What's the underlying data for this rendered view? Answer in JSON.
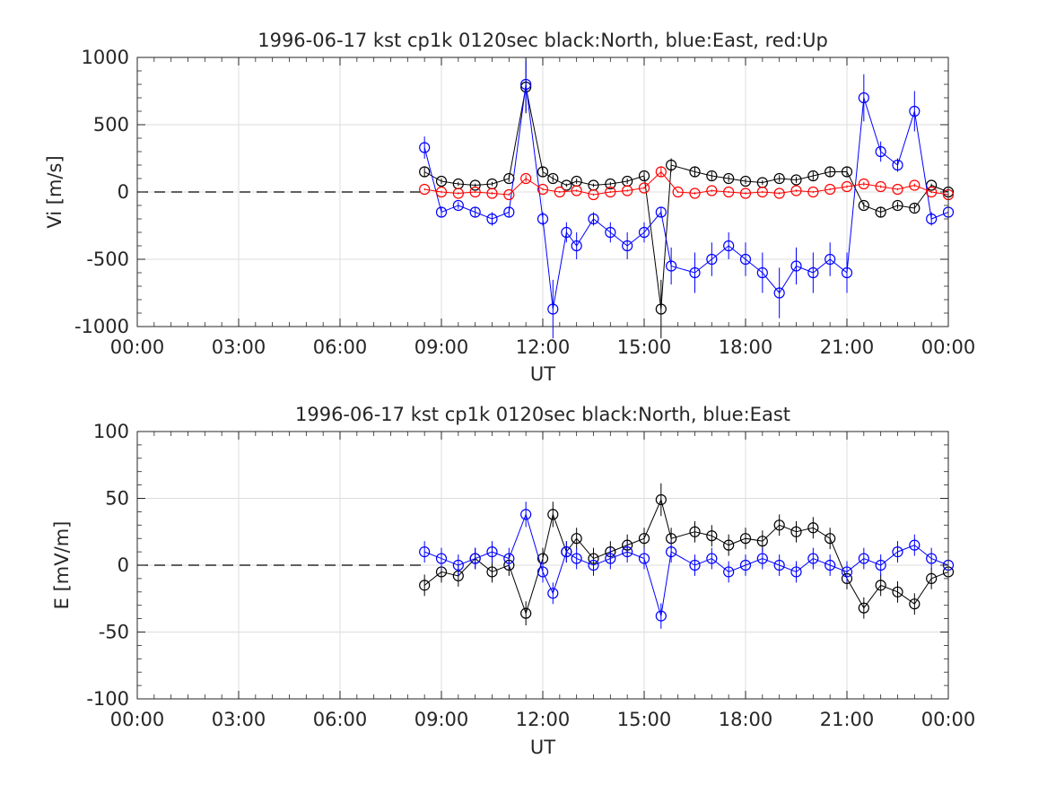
{
  "colors": {
    "north": "#000000",
    "east": "#0000ff",
    "up": "#ff0000",
    "grid": "#dcdcdc",
    "axis": "#262626"
  },
  "chart_data": [
    {
      "type": "scatter",
      "title": "1996-06-17 kst cp1k 0120sec black:North, blue:East, red:Up",
      "xlabel": "UT",
      "ylabel": "Vi [m/s]",
      "xlim": [
        0,
        24
      ],
      "ylim": [
        -1000,
        1000
      ],
      "xticks": [
        0,
        3,
        6,
        9,
        12,
        15,
        18,
        21,
        24
      ],
      "xtick_labels": [
        "00:00",
        "03:00",
        "06:00",
        "09:00",
        "12:00",
        "15:00",
        "18:00",
        "21:00",
        "00:00"
      ],
      "yticks": [
        1000,
        500,
        0,
        -500,
        -1000
      ],
      "ytick_labels": [
        "1000",
        "500",
        "0",
        "-500",
        "-1000"
      ],
      "grid": true,
      "marker": "open-circle with vertical error bars",
      "zero_line": "dashed black line at 0 from 00:00 to 08:30",
      "series": [
        {
          "name": "North",
          "color": "black",
          "x": [
            8.5,
            9.0,
            9.5,
            10.0,
            10.5,
            11.0,
            11.5,
            12.0,
            12.3,
            12.7,
            13.0,
            13.5,
            14.0,
            14.5,
            15.0,
            15.5,
            15.8,
            16.5,
            17.0,
            17.5,
            18.0,
            18.5,
            19.0,
            19.5,
            20.0,
            20.5,
            21.0,
            21.5,
            22.0,
            22.5,
            23.0,
            23.5,
            24.0
          ],
          "y": [
            150,
            80,
            60,
            50,
            60,
            100,
            780,
            150,
            100,
            50,
            80,
            50,
            60,
            80,
            120,
            -870,
            200,
            150,
            120,
            100,
            80,
            70,
            100,
            90,
            120,
            150,
            150,
            -100,
            -150,
            -100,
            -120,
            50,
            0
          ]
        },
        {
          "name": "East",
          "color": "blue",
          "x": [
            8.5,
            9.0,
            9.5,
            10.0,
            10.5,
            11.0,
            11.5,
            12.0,
            12.3,
            12.7,
            13.0,
            13.5,
            14.0,
            14.5,
            15.0,
            15.5,
            15.8,
            16.5,
            17.0,
            17.5,
            18.0,
            18.5,
            19.0,
            19.5,
            20.0,
            20.5,
            21.0,
            21.5,
            22.0,
            22.5,
            23.0,
            23.5,
            24.0
          ],
          "y": [
            330,
            -150,
            -100,
            -150,
            -200,
            -150,
            800,
            -200,
            -870,
            -300,
            -400,
            -200,
            -300,
            -400,
            -300,
            -150,
            -550,
            -600,
            -500,
            -400,
            -500,
            -600,
            -750,
            -550,
            -600,
            -500,
            -600,
            700,
            300,
            200,
            600,
            -200,
            -150
          ]
        },
        {
          "name": "Up",
          "color": "red",
          "x": [
            8.5,
            9.0,
            9.5,
            10.0,
            10.5,
            11.0,
            11.5,
            12.0,
            12.5,
            13.0,
            13.5,
            14.0,
            14.5,
            15.0,
            15.5,
            16.0,
            16.5,
            17.0,
            17.5,
            18.0,
            18.5,
            19.0,
            19.5,
            20.0,
            20.5,
            21.0,
            21.5,
            22.0,
            22.5,
            23.0,
            23.5,
            24.0
          ],
          "y": [
            20,
            0,
            -10,
            0,
            -10,
            -20,
            100,
            20,
            0,
            10,
            -20,
            0,
            10,
            30,
            150,
            0,
            -10,
            10,
            0,
            -10,
            0,
            -10,
            10,
            0,
            20,
            40,
            60,
            40,
            20,
            50,
            0,
            -20
          ]
        }
      ]
    },
    {
      "type": "scatter",
      "title": "1996-06-17 kst cp1k 0120sec black:North, blue:East",
      "xlabel": "UT",
      "ylabel": "E [mV/m]",
      "xlim": [
        0,
        24
      ],
      "ylim": [
        -100,
        100
      ],
      "xticks": [
        0,
        3,
        6,
        9,
        12,
        15,
        18,
        21,
        24
      ],
      "xtick_labels": [
        "00:00",
        "03:00",
        "06:00",
        "09:00",
        "12:00",
        "15:00",
        "18:00",
        "21:00",
        "00:00"
      ],
      "yticks": [
        100,
        50,
        0,
        -50,
        -100
      ],
      "ytick_labels": [
        "100",
        "50",
        "0",
        "-50",
        "-100"
      ],
      "grid": true,
      "marker": "open-circle with vertical error bars",
      "zero_line": "dashed black line at 0 from 00:00 to 08:30",
      "series": [
        {
          "name": "North",
          "color": "black",
          "x": [
            8.5,
            9.0,
            9.5,
            10.0,
            10.5,
            11.0,
            11.5,
            12.0,
            12.3,
            12.7,
            13.0,
            13.5,
            14.0,
            14.5,
            15.0,
            15.5,
            15.8,
            16.5,
            17.0,
            17.5,
            18.0,
            18.5,
            19.0,
            19.5,
            20.0,
            20.5,
            21.0,
            21.5,
            22.0,
            22.5,
            23.0,
            23.5,
            24.0
          ],
          "y": [
            -15,
            -5,
            -8,
            5,
            -5,
            0,
            -36,
            5,
            38,
            10,
            20,
            5,
            10,
            15,
            20,
            49,
            20,
            25,
            22,
            15,
            20,
            18,
            30,
            25,
            28,
            20,
            -10,
            -32,
            -15,
            -20,
            -29,
            -10,
            -5
          ]
        },
        {
          "name": "East",
          "color": "blue",
          "x": [
            8.5,
            9.0,
            9.5,
            10.0,
            10.5,
            11.0,
            11.5,
            12.0,
            12.3,
            12.7,
            13.0,
            13.5,
            14.0,
            14.5,
            15.0,
            15.5,
            15.8,
            16.5,
            17.0,
            17.5,
            18.0,
            18.5,
            19.0,
            19.5,
            20.0,
            20.5,
            21.0,
            21.5,
            22.0,
            22.5,
            23.0,
            23.5,
            24.0
          ],
          "y": [
            10,
            5,
            0,
            5,
            10,
            5,
            38,
            -5,
            -21,
            10,
            5,
            0,
            5,
            10,
            5,
            -38,
            10,
            0,
            5,
            -5,
            0,
            5,
            0,
            -5,
            5,
            0,
            -5,
            5,
            0,
            10,
            15,
            5,
            0
          ]
        }
      ]
    }
  ]
}
